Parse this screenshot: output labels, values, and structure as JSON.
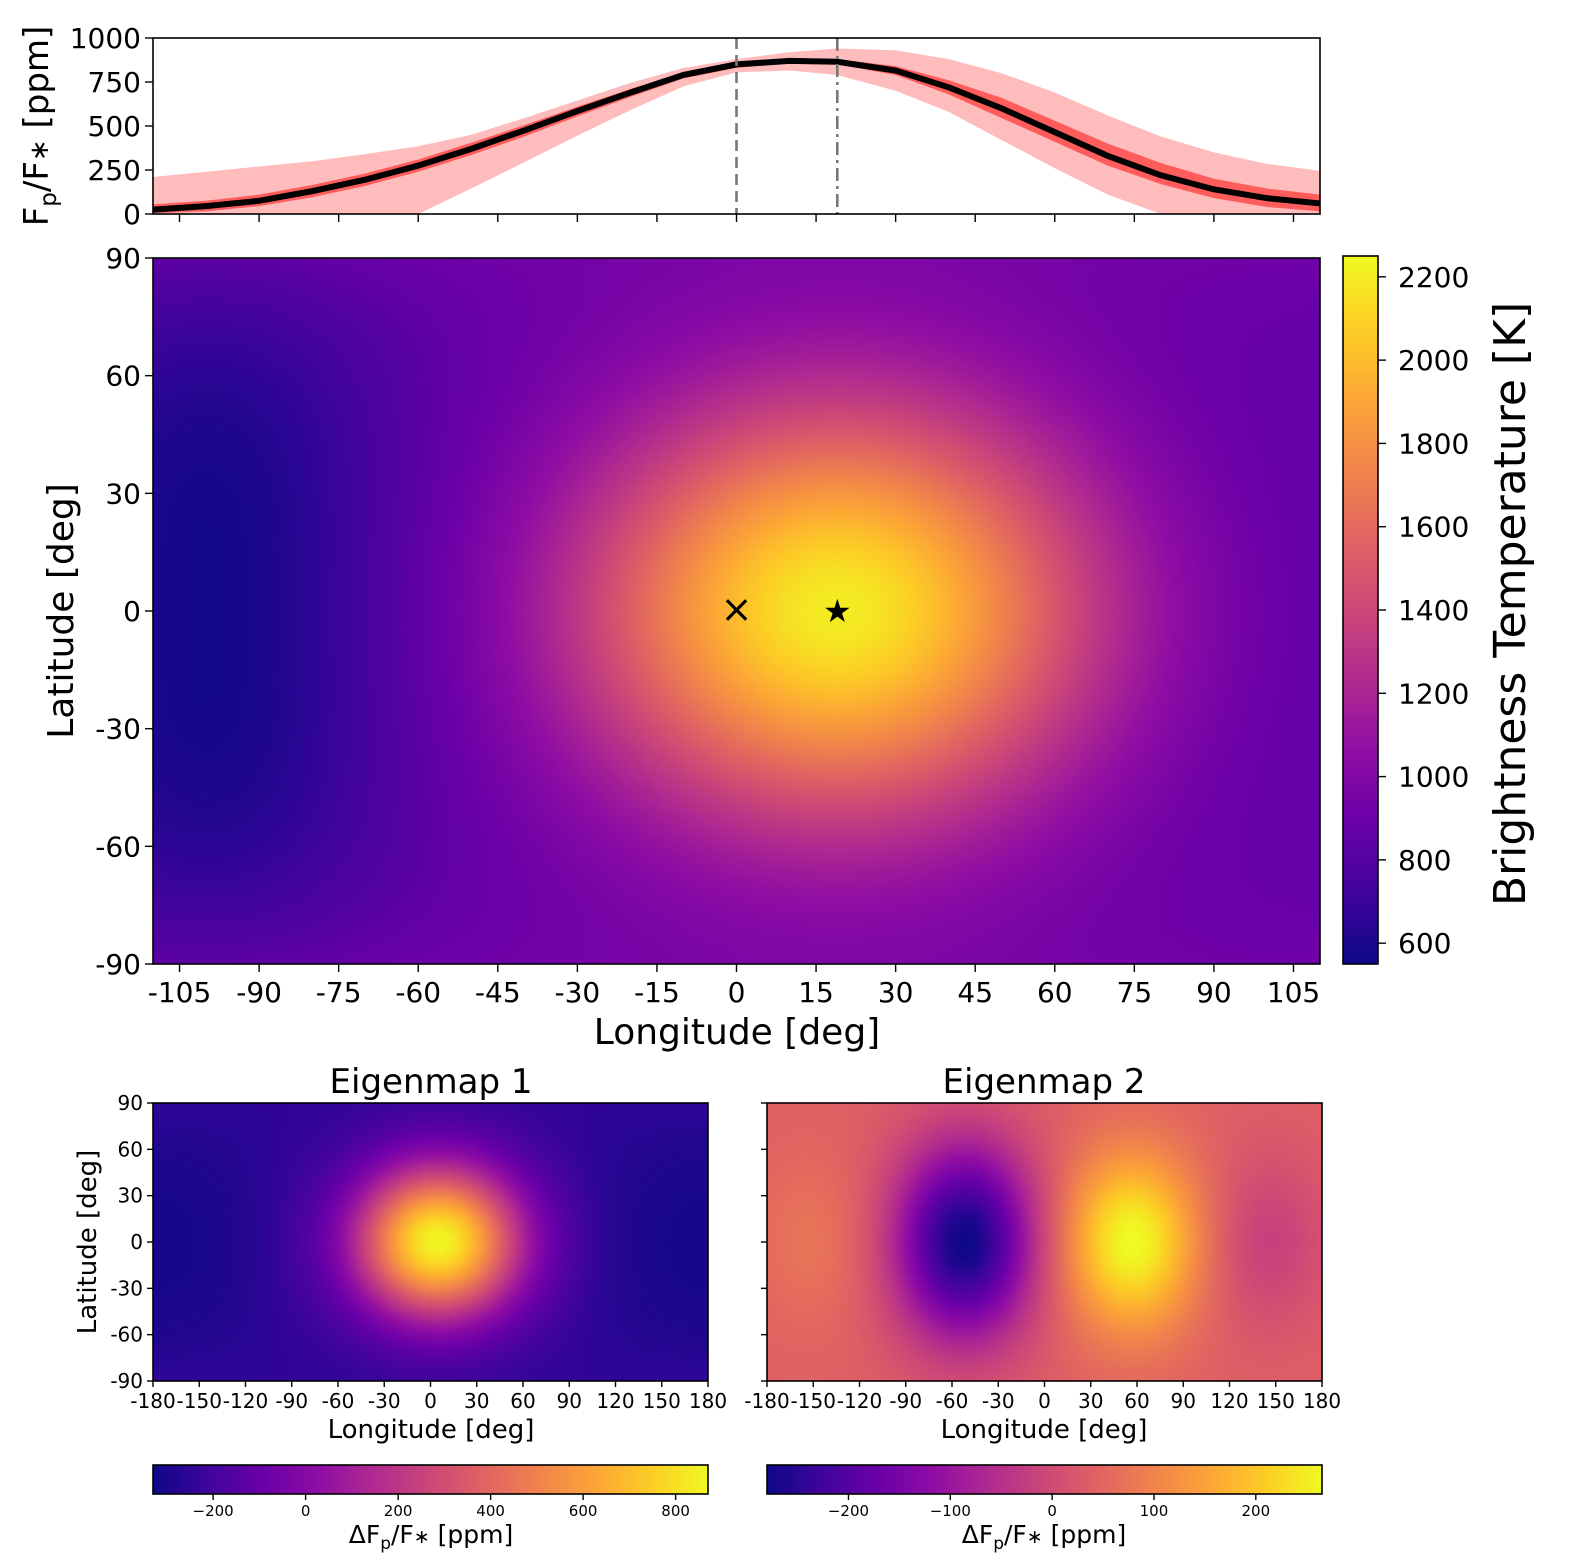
{
  "chart_data": [
    {
      "type": "line",
      "panel": "phase-curve",
      "ylabel_main": "F",
      "ylabel_sub1": "p",
      "ylabel_mid": "/F",
      "ylabel_sub2": "∗",
      "ylabel_unit": " [ppm]",
      "xlim": [
        -110,
        110
      ],
      "ylim": [
        0,
        1000
      ],
      "yticks": [
        "0",
        "250",
        "500",
        "750",
        "1000"
      ],
      "x": [
        -110,
        -100,
        -90,
        -80,
        -70,
        -60,
        -50,
        -40,
        -30,
        -20,
        -10,
        0,
        10,
        19,
        30,
        40,
        50,
        60,
        70,
        80,
        90,
        100,
        110
      ],
      "series": [
        {
          "name": "median",
          "color": "#000000",
          "values": [
            25,
            45,
            75,
            130,
            195,
            275,
            370,
            475,
            585,
            690,
            790,
            850,
            870,
            865,
            815,
            720,
            600,
            465,
            330,
            220,
            140,
            90,
            60
          ]
        },
        {
          "name": "1-sigma upper",
          "color": "#ff4b4b",
          "values": [
            55,
            75,
            110,
            165,
            230,
            310,
            405,
            505,
            610,
            710,
            805,
            860,
            880,
            880,
            840,
            760,
            660,
            530,
            400,
            290,
            200,
            145,
            110
          ]
        },
        {
          "name": "1-sigma lower",
          "color": "#ff4b4b",
          "values": [
            5,
            15,
            45,
            95,
            160,
            240,
            335,
            440,
            555,
            665,
            770,
            830,
            855,
            850,
            790,
            680,
            545,
            410,
            275,
            170,
            90,
            40,
            15
          ]
        },
        {
          "name": "2-sigma upper",
          "color": "#ffb0b0",
          "values": [
            210,
            240,
            270,
            300,
            340,
            385,
            450,
            545,
            645,
            745,
            830,
            880,
            920,
            940,
            930,
            880,
            800,
            690,
            560,
            440,
            350,
            285,
            245
          ]
        },
        {
          "name": "2-sigma lower",
          "color": "#ffb0b0",
          "values": [
            0,
            0,
            0,
            0,
            0,
            0,
            145,
            295,
            445,
            590,
            725,
            805,
            815,
            790,
            700,
            580,
            420,
            260,
            110,
            0,
            0,
            0,
            0
          ]
        }
      ],
      "vlines": [
        {
          "x": 0,
          "style": "dashed"
        },
        {
          "x": 19,
          "style": "dashdot"
        }
      ]
    },
    {
      "type": "heatmap",
      "panel": "brightness-temperature-map",
      "xlabel": "Longitude [deg]",
      "ylabel": "Latitude [deg]",
      "xlim": [
        -110,
        110
      ],
      "ylim": [
        -90,
        90
      ],
      "xticks": [
        "-105",
        "-90",
        "-75",
        "-60",
        "-45",
        "-30",
        "-15",
        "0",
        "15",
        "30",
        "45",
        "60",
        "75",
        "90",
        "105"
      ],
      "yticks": [
        "-90",
        "-60",
        "-30",
        "0",
        "30",
        "60",
        "90"
      ],
      "colormap": "plasma",
      "hotspot": {
        "lon": 19,
        "lat": 0,
        "value_K": 2200
      },
      "coldspot": {
        "lon": -100,
        "lat": 0,
        "value_K": 560
      },
      "markers": [
        {
          "symbol": "×",
          "lon": 0,
          "lat": 0
        },
        {
          "symbol": "★",
          "lon": 19,
          "lat": 0
        }
      ],
      "colorbar": {
        "label": "Brightness Temperature [K]",
        "range": [
          550,
          2250
        ],
        "ticks": [
          "600",
          "800",
          "1000",
          "1200",
          "1400",
          "1600",
          "1800",
          "2000",
          "2200"
        ]
      }
    },
    {
      "type": "heatmap",
      "panel": "eigenmap-1",
      "title": "Eigenmap 1",
      "xlabel": "Longitude [deg]",
      "ylabel": "Latitude [deg]",
      "xlim": [
        -180,
        180
      ],
      "ylim": [
        -90,
        90
      ],
      "xticks": [
        "-180",
        "-150",
        "-120",
        "-90",
        "-60",
        "-30",
        "0",
        "30",
        "60",
        "90",
        "120",
        "150",
        "180"
      ],
      "yticks": [
        "-90",
        "-60",
        "-30",
        "0",
        "30",
        "60",
        "90"
      ],
      "colormap": "plasma",
      "peak": {
        "lon": 5,
        "lat": 0,
        "value_ppm": 860
      },
      "colorbar": {
        "label_main": "ΔF",
        "label_sub1": "p",
        "label_mid": "/F",
        "label_sub2": "∗",
        "label_unit": " [ppm]",
        "range": [
          -330,
          870
        ],
        "ticks": [
          "−200",
          "0",
          "200",
          "400",
          "600",
          "800"
        ]
      }
    },
    {
      "type": "heatmap",
      "panel": "eigenmap-2",
      "title": "Eigenmap 2",
      "xlabel": "Longitude [deg]",
      "ylim": [
        -90,
        90
      ],
      "xlim": [
        -180,
        180
      ],
      "xticks": [
        "-180",
        "-150",
        "-120",
        "-90",
        "-60",
        "-30",
        "0",
        "30",
        "60",
        "90",
        "120",
        "150",
        "180"
      ],
      "colormap": "plasma",
      "maximum": {
        "lon": 57,
        "lat": 0,
        "value_ppm": 265
      },
      "minimum": {
        "lon": -52,
        "lat": 0,
        "value_ppm": -280
      },
      "colorbar": {
        "label_main": "ΔF",
        "label_sub1": "p",
        "label_mid": "/F",
        "label_sub2": "∗",
        "label_unit": " [ppm]",
        "range": [
          -280,
          265
        ],
        "ticks": [
          "−200",
          "−100",
          "0",
          "100",
          "200"
        ]
      }
    }
  ]
}
